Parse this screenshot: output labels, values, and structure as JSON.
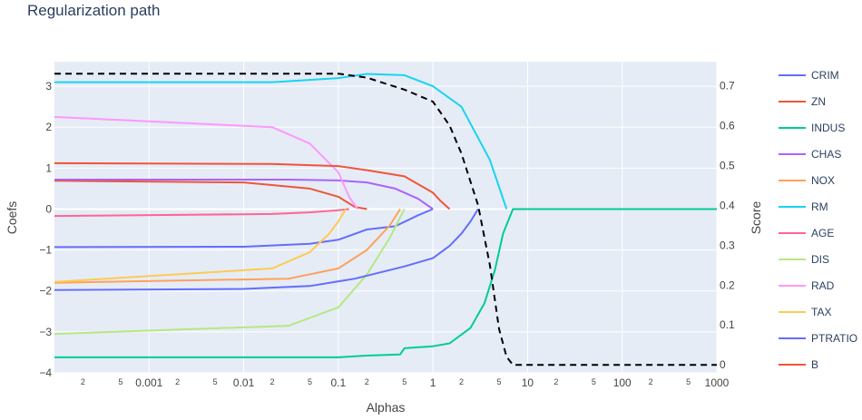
{
  "chart_data": {
    "type": "line",
    "title": "Regularization path",
    "xlabel": "Alphas",
    "ylabel": "Coefs",
    "y2label": "Score",
    "xscale": "log",
    "xlim": [
      0.0001,
      1000
    ],
    "ylim": [
      -4,
      3.6
    ],
    "y2lim": [
      -0.02,
      0.76
    ],
    "grid": true,
    "legend_position": "right",
    "x_major_ticks": [
      "0.001",
      "0.01",
      "0.1",
      "1",
      "10",
      "100",
      "1000"
    ],
    "x_minor_ticks": [
      "2",
      "5"
    ],
    "y_ticks": [
      "−4",
      "−3",
      "−2",
      "−1",
      "0",
      "1",
      "2",
      "3"
    ],
    "y2_ticks": [
      "0",
      "0.1",
      "0.2",
      "0.3",
      "0.4",
      "0.5",
      "0.6",
      "0.7"
    ],
    "series": [
      {
        "name": "CRIM",
        "color": "#636efa",
        "x": [
          0.0001,
          0.01,
          0.05,
          0.1,
          0.2,
          0.4,
          0.7,
          1.0
        ],
        "y": [
          -0.93,
          -0.92,
          -0.85,
          -0.75,
          -0.5,
          -0.42,
          -0.15,
          0
        ]
      },
      {
        "name": "ZN",
        "color": "#EF553B",
        "x": [
          0.0001,
          0.01,
          0.05,
          0.1,
          0.15,
          0.2
        ],
        "y": [
          0.69,
          0.65,
          0.5,
          0.3,
          0.05,
          0
        ]
      },
      {
        "name": "INDUS",
        "color": "#00cc96",
        "x": [
          0.0001,
          0.05,
          0.1,
          0.2,
          0.45,
          0.5,
          1.0,
          1.5,
          2.5,
          3.5,
          4.5,
          5.5,
          7.0,
          1000
        ],
        "y": [
          -3.62,
          -3.62,
          -3.62,
          -3.58,
          -3.55,
          -3.4,
          -3.35,
          -3.28,
          -2.9,
          -2.3,
          -1.5,
          -0.6,
          0,
          0
        ]
      },
      {
        "name": "CHAS",
        "color": "#ab63fa",
        "x": [
          0.0001,
          0.03,
          0.1,
          0.2,
          0.4,
          0.7,
          1.0
        ],
        "y": [
          0.72,
          0.72,
          0.7,
          0.65,
          0.5,
          0.25,
          0
        ]
      },
      {
        "name": "NOX",
        "color": "#FFA15A",
        "x": [
          0.0001,
          0.03,
          0.1,
          0.2,
          0.35,
          0.45
        ],
        "y": [
          -1.8,
          -1.7,
          -1.45,
          -1.0,
          -0.4,
          0
        ]
      },
      {
        "name": "RM",
        "color": "#19d3f3",
        "x": [
          0.0001,
          0.02,
          0.1,
          0.2,
          0.5,
          1.0,
          2.0,
          4.0,
          6.0
        ],
        "y": [
          3.1,
          3.1,
          3.2,
          3.3,
          3.27,
          3.0,
          2.5,
          1.2,
          0
        ]
      },
      {
        "name": "AGE",
        "color": "#FF6692",
        "x": [
          0.0001,
          0.02,
          0.05,
          0.1,
          0.13
        ],
        "y": [
          -0.17,
          -0.12,
          -0.08,
          -0.03,
          0
        ]
      },
      {
        "name": "DIS",
        "color": "#B6E880",
        "x": [
          0.0001,
          0.03,
          0.1,
          0.2,
          0.35,
          0.5
        ],
        "y": [
          -3.05,
          -2.85,
          -2.4,
          -1.6,
          -0.7,
          0
        ]
      },
      {
        "name": "RAD",
        "color": "#FF97FF",
        "x": [
          0.0001,
          0.02,
          0.05,
          0.1,
          0.13,
          0.16
        ],
        "y": [
          2.25,
          2.0,
          1.6,
          0.9,
          0.3,
          0
        ]
      },
      {
        "name": "TAX",
        "color": "#FECB52",
        "x": [
          0.0001,
          0.02,
          0.05,
          0.08,
          0.1,
          0.12
        ],
        "y": [
          -1.78,
          -1.45,
          -1.05,
          -0.6,
          -0.3,
          0
        ]
      },
      {
        "name": "PTRATIO",
        "color": "#636efa",
        "x": [
          0.0001,
          0.01,
          0.05,
          0.15,
          0.5,
          1.0,
          1.5,
          2.0,
          2.5,
          3.0
        ],
        "y": [
          -1.98,
          -1.95,
          -1.88,
          -1.7,
          -1.4,
          -1.2,
          -0.9,
          -0.6,
          -0.3,
          0
        ]
      },
      {
        "name": "B",
        "color": "#EF553B",
        "x": [
          0.0001,
          0.02,
          0.1,
          0.2,
          0.5,
          1.0,
          1.2,
          1.5
        ],
        "y": [
          1.12,
          1.1,
          1.05,
          0.95,
          0.8,
          0.4,
          0.2,
          0
        ]
      }
    ],
    "score_series": {
      "color": "#000000",
      "dash": true,
      "x": [
        0.0001,
        0.1,
        0.2,
        0.5,
        1.0,
        1.5,
        2.0,
        3.0,
        4.0,
        5.0,
        6.0,
        7.0,
        1000
      ],
      "y": [
        0.73,
        0.73,
        0.72,
        0.69,
        0.66,
        0.6,
        0.53,
        0.4,
        0.25,
        0.09,
        0.02,
        0,
        0
      ]
    }
  }
}
